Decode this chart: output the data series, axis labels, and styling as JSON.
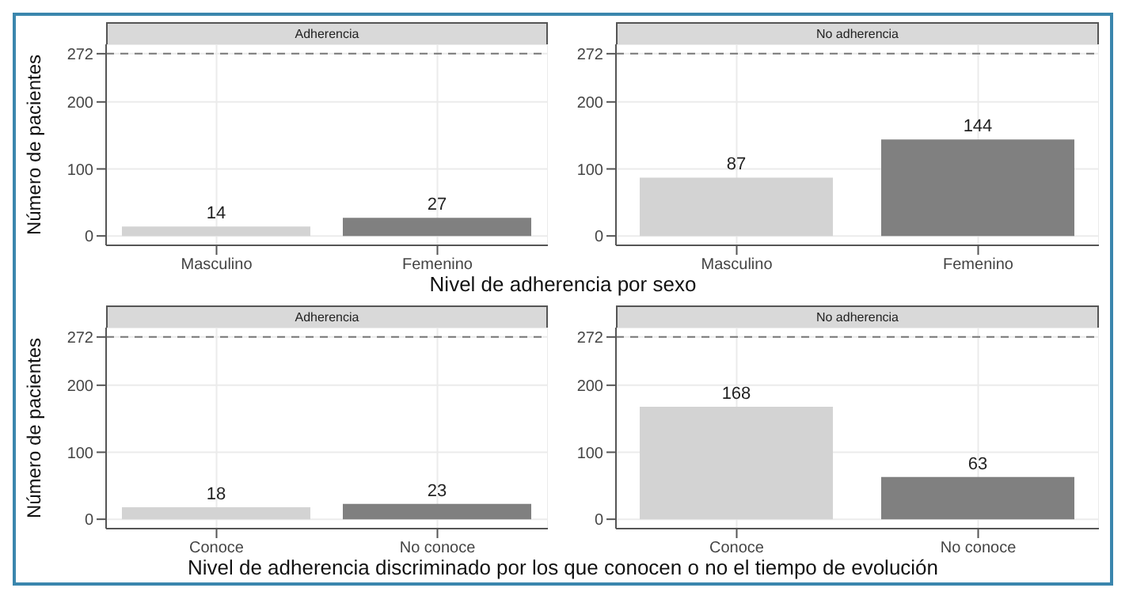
{
  "chart_data": [
    {
      "type": "bar",
      "title": "Adherencia",
      "ylabel": "Número de pacientes",
      "xlabel": "Nivel de adherencia por sexo",
      "categories": [
        "Masculino",
        "Femenino"
      ],
      "values": [
        14,
        27
      ],
      "colors": [
        "#d3d3d3",
        "#808080"
      ],
      "ylim": [
        -14,
        286
      ],
      "yticks": [
        0,
        100,
        200,
        272
      ],
      "ref_lines": [
        {
          "axis": "y",
          "value": 272,
          "line_style": "dashed"
        }
      ],
      "data_labels": true,
      "grid": true
    },
    {
      "type": "bar",
      "title": "No adherencia",
      "categories": [
        "Masculino",
        "Femenino"
      ],
      "values": [
        87,
        144
      ],
      "colors": [
        "#d3d3d3",
        "#808080"
      ],
      "ylim": [
        -14,
        286
      ],
      "yticks": [
        0,
        100,
        200,
        272
      ],
      "ref_lines": [
        {
          "axis": "y",
          "value": 272,
          "line_style": "dashed"
        }
      ],
      "data_labels": true,
      "grid": true
    },
    {
      "type": "bar",
      "title": "Adherencia",
      "ylabel": "Número de pacientes",
      "xlabel": "Nivel de adherencia discriminado por los que conocen o no el tiempo de evolución",
      "categories": [
        "Conoce",
        "No conoce"
      ],
      "values": [
        18,
        23
      ],
      "colors": [
        "#d3d3d3",
        "#808080"
      ],
      "ylim": [
        -14,
        286
      ],
      "yticks": [
        0,
        100,
        200,
        272
      ],
      "ref_lines": [
        {
          "axis": "y",
          "value": 272,
          "line_style": "dashed"
        }
      ],
      "data_labels": true,
      "grid": true
    },
    {
      "type": "bar",
      "title": "No adherencia",
      "categories": [
        "Conoce",
        "No conoce"
      ],
      "values": [
        168,
        63
      ],
      "colors": [
        "#d3d3d3",
        "#808080"
      ],
      "ylim": [
        -14,
        286
      ],
      "yticks": [
        0,
        100,
        200,
        272
      ],
      "ref_lines": [
        {
          "axis": "y",
          "value": 272,
          "line_style": "dashed"
        }
      ],
      "data_labels": true,
      "grid": true
    }
  ]
}
